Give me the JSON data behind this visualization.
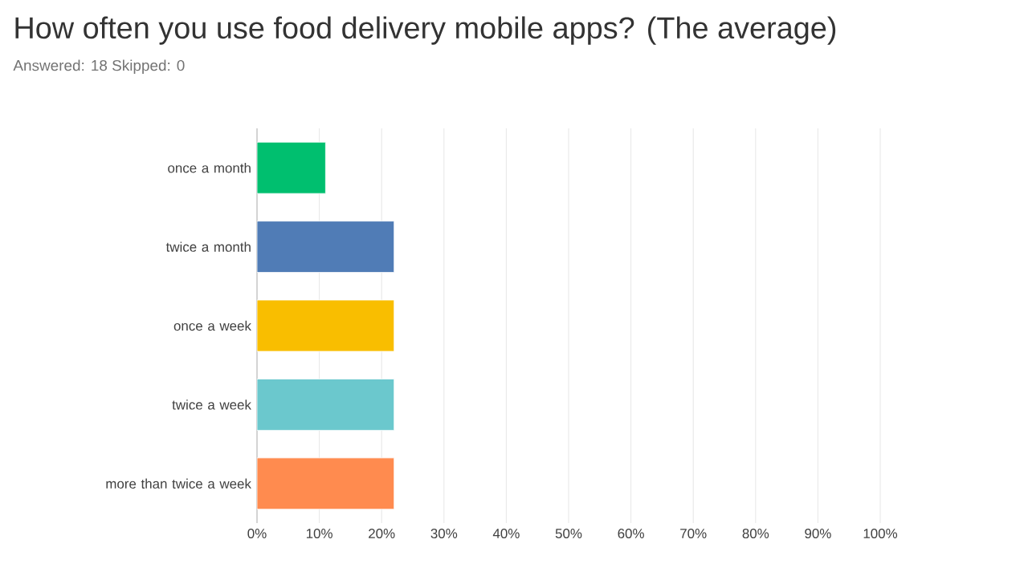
{
  "chart_data": {
    "type": "bar",
    "orientation": "horizontal",
    "title": "How often you use food delivery mobile apps? (The average)",
    "subtitle": "Answered: 18    Skipped: 0",
    "categories": [
      "once a month",
      "twice a month",
      "once a week",
      "twice a week",
      "more than twice a week"
    ],
    "values": [
      11,
      22,
      22,
      22,
      22
    ],
    "colors": [
      "#00bf6f",
      "#507cb6",
      "#f9be00",
      "#6bc8cd",
      "#ff8b4f"
    ],
    "xlim": [
      0,
      100
    ],
    "xticks": [
      {
        "value": 0,
        "label": "0%"
      },
      {
        "value": 10,
        "label": "10%"
      },
      {
        "value": 20,
        "label": "20%"
      },
      {
        "value": 30,
        "label": "30%"
      },
      {
        "value": 40,
        "label": "40%"
      },
      {
        "value": 50,
        "label": "50%"
      },
      {
        "value": 60,
        "label": "60%"
      },
      {
        "value": 70,
        "label": "70%"
      },
      {
        "value": 80,
        "label": "80%"
      },
      {
        "value": 90,
        "label": "90%"
      },
      {
        "value": 100,
        "label": "100%"
      }
    ],
    "grid": "x"
  }
}
